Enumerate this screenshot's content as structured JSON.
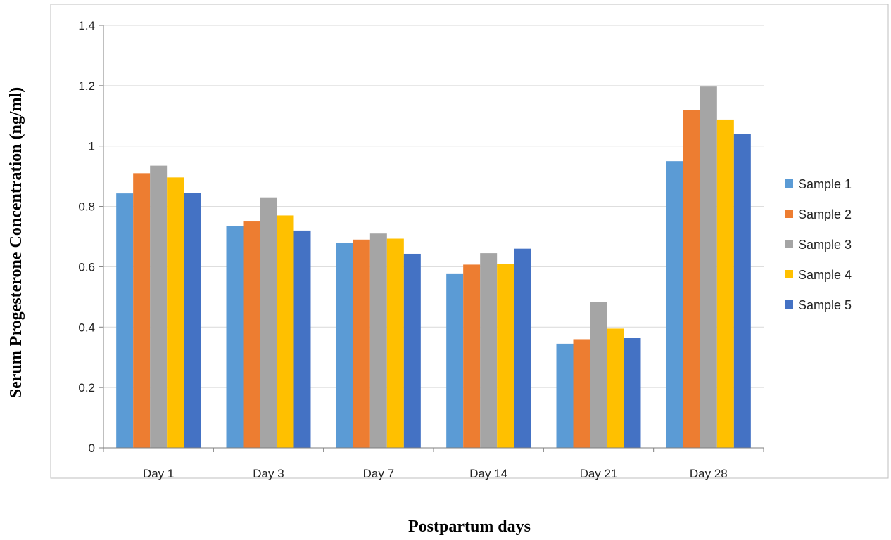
{
  "chart_data": {
    "type": "bar",
    "title": "",
    "xlabel": "Postpartum days",
    "ylabel": "Serum Progesterone Concentration (ng/ml)",
    "categories": [
      "Day 1",
      "Day 3",
      "Day 7",
      "Day 14",
      "Day 21",
      "Day 28"
    ],
    "ylim": [
      0,
      1.4
    ],
    "yticks": [
      "0",
      "0.2",
      "0.4",
      "0.6",
      "0.8",
      "1",
      "1.2",
      "1.4"
    ],
    "grid": true,
    "legend_position": "right",
    "series": [
      {
        "name": "Sample 1",
        "color": "#5B9BD5",
        "values": [
          0.843,
          0.735,
          0.678,
          0.578,
          0.345,
          0.95
        ]
      },
      {
        "name": "Sample 2",
        "color": "#ED7D31",
        "values": [
          0.91,
          0.75,
          0.69,
          0.607,
          0.36,
          1.12
        ]
      },
      {
        "name": "Sample 3",
        "color": "#A5A5A5",
        "values": [
          0.935,
          0.83,
          0.71,
          0.645,
          0.483,
          1.197
        ]
      },
      {
        "name": "Sample 4",
        "color": "#FFC000",
        "values": [
          0.896,
          0.77,
          0.693,
          0.61,
          0.395,
          1.088
        ]
      },
      {
        "name": "Sample 5",
        "color": "#4472C4",
        "values": [
          0.845,
          0.72,
          0.643,
          0.66,
          0.365,
          1.04
        ]
      }
    ]
  }
}
